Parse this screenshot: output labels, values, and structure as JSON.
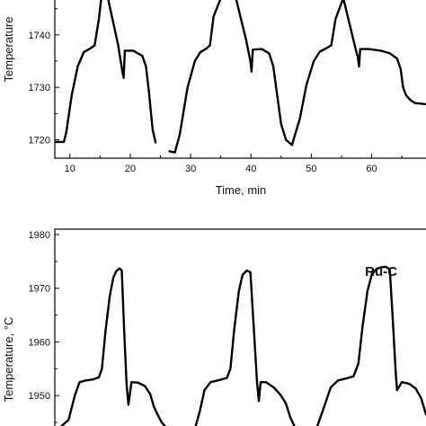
{
  "chart_data": [
    {
      "type": "line",
      "title": "",
      "xlabel": "Time, min",
      "ylabel": "Temperature",
      "xlim": [
        7.5,
        69
      ],
      "ylim": [
        1716.5,
        1747
      ],
      "x_ticks": [
        10,
        20,
        30,
        40,
        50,
        60
      ],
      "y_ticks": [
        1720,
        1730,
        1740
      ],
      "grid": false,
      "series": [
        {
          "x": [
            7.6,
            9.0,
            9.4,
            10.3,
            11.3,
            12.3,
            13.2,
            14.1,
            14.8,
            15.2,
            16.3,
            18.0,
            18.7,
            18.9,
            19.1,
            20.5,
            22.0,
            22.6,
            23.1,
            23.7,
            24.2
          ],
          "y": [
            1719.6,
            1719.6,
            1721.5,
            1728.5,
            1734.0,
            1736.7,
            1737.3,
            1738.0,
            1743.0,
            1747.0,
            1747.0,
            1738.0,
            1733.0,
            1731.8,
            1737.0,
            1737.0,
            1736.0,
            1734.0,
            1729.0,
            1722.0,
            1719.5
          ]
        },
        {
          "x": [
            26.5,
            27.4,
            28.2,
            29.5,
            30.7,
            31.6,
            32.5,
            33.2,
            33.8,
            35.0,
            37.5,
            39.2,
            39.9,
            40.1,
            40.3,
            41.8,
            43.0,
            43.7,
            44.4,
            45.0,
            45.8,
            46.8,
            47.3
          ],
          "y": [
            1717.8,
            1717.6,
            1721.0,
            1730.0,
            1735.0,
            1736.7,
            1737.3,
            1738.0,
            1743.5,
            1747.0,
            1747.0,
            1739.0,
            1735.0,
            1733.0,
            1737.2,
            1737.3,
            1736.5,
            1734.0,
            1728.0,
            1723.0,
            1720.0,
            1719.0,
            1721.0
          ]
        },
        {
          "x": [
            47.3,
            48.1,
            49.2,
            50.4,
            51.4,
            52.4,
            53.3,
            54.0,
            55.3,
            57.3,
            57.7,
            57.9,
            58.1,
            59.5,
            61.5,
            63.0,
            64.2,
            64.8,
            65.2,
            65.7,
            66.4,
            67.2,
            69.0
          ],
          "y": [
            1721.0,
            1724.0,
            1730.5,
            1735.0,
            1736.8,
            1737.4,
            1738.0,
            1743.0,
            1747.0,
            1737.5,
            1735.8,
            1734.0,
            1737.3,
            1737.3,
            1737.0,
            1736.5,
            1735.5,
            1733.5,
            1730.0,
            1728.5,
            1727.6,
            1727.0,
            1726.8
          ]
        }
      ]
    },
    {
      "type": "line",
      "title": "Ru-C",
      "xlabel": "",
      "ylabel": "Temperature, °C",
      "xlim": [
        7.5,
        69
      ],
      "ylim": [
        1944,
        1981
      ],
      "y_ticks": [
        1950,
        1960,
        1970,
        1980
      ],
      "grid": false,
      "series": [
        {
          "x": [
            8.5,
            9.8,
            10.8,
            11.6,
            12.6,
            13.8,
            14.8,
            15.3,
            15.9,
            16.6,
            17.2,
            17.7,
            18.2,
            18.6,
            19.0,
            19.4,
            19.7,
            20.2,
            21.3,
            22.4,
            23.3,
            23.9,
            24.5,
            25.2,
            26.0
          ],
          "y": [
            1944.2,
            1945.5,
            1950.0,
            1952.5,
            1952.8,
            1953.0,
            1953.4,
            1955.0,
            1962.0,
            1968.5,
            1972.0,
            1973.2,
            1973.7,
            1973.3,
            1962.0,
            1952.0,
            1948.3,
            1952.5,
            1952.4,
            1951.8,
            1950.3,
            1948.0,
            1946.5,
            1945.0,
            1944.0
          ]
        },
        {
          "x": [
            30.8,
            31.5,
            32.3,
            33.3,
            34.8,
            36.0,
            36.6,
            37.2,
            38.0,
            38.6,
            39.3,
            39.9,
            40.5,
            41.0,
            41.3,
            41.6,
            42.5,
            43.8,
            45.0,
            45.8,
            46.5,
            47.2
          ],
          "y": [
            1944.2,
            1947.0,
            1951.0,
            1952.5,
            1952.9,
            1953.3,
            1955.0,
            1962.0,
            1969.5,
            1972.5,
            1973.3,
            1973.0,
            1962.0,
            1952.5,
            1949.0,
            1952.5,
            1952.5,
            1951.5,
            1950.0,
            1948.5,
            1946.0,
            1944.3
          ]
        },
        {
          "x": [
            51.0,
            52.0,
            53.2,
            54.4,
            55.8,
            57.0,
            57.8,
            58.5,
            59.3,
            60.0,
            60.8,
            61.6,
            62.3,
            63.0,
            63.5,
            64.0,
            64.2,
            65.0,
            66.2,
            67.3,
            68.2,
            69.0
          ],
          "y": [
            1944.3,
            1947.5,
            1951.5,
            1952.8,
            1953.2,
            1953.6,
            1956.0,
            1963.0,
            1969.5,
            1972.5,
            1973.6,
            1973.9,
            1974.0,
            1973.5,
            1964.0,
            1954.0,
            1951.0,
            1952.5,
            1952.2,
            1951.3,
            1949.5,
            1946.5
          ]
        }
      ]
    }
  ]
}
